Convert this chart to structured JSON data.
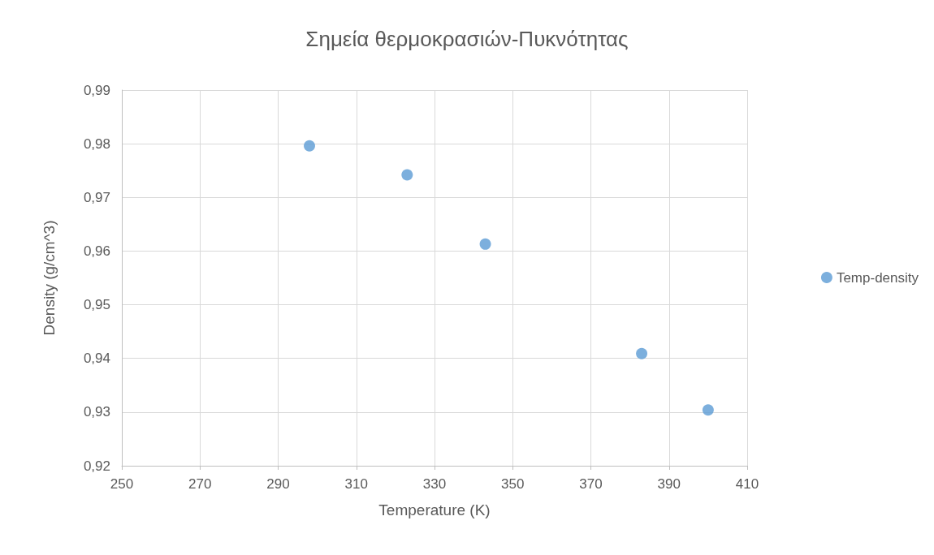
{
  "chart_data": {
    "type": "scatter",
    "title": "Σημεία θερμοκρασιών-Πυκνότητας",
    "xlabel": "Temperature (K)",
    "ylabel": "Density (g/cm^3)",
    "x": [
      298,
      323,
      343,
      383,
      400
    ],
    "series": [
      {
        "name": "Temp-density",
        "color": "#5b9bd5",
        "values": [
          0.9796,
          0.9742,
          0.9613,
          0.9409,
          0.9304
        ]
      }
    ],
    "xlim": [
      250,
      410
    ],
    "xticks": [
      250,
      270,
      290,
      310,
      330,
      350,
      370,
      390,
      410
    ],
    "ylim": [
      0.92,
      0.99
    ],
    "yticks": [
      {
        "value": 0.92,
        "label": "0,92"
      },
      {
        "value": 0.93,
        "label": "0,93"
      },
      {
        "value": 0.94,
        "label": "0,94"
      },
      {
        "value": 0.95,
        "label": "0,95"
      },
      {
        "value": 0.96,
        "label": "0,96"
      },
      {
        "value": 0.97,
        "label": "0,97"
      },
      {
        "value": 0.98,
        "label": "0,98"
      },
      {
        "value": 0.99,
        "label": "0,99"
      }
    ],
    "grid": true,
    "legend": "right",
    "marker": "circle"
  }
}
